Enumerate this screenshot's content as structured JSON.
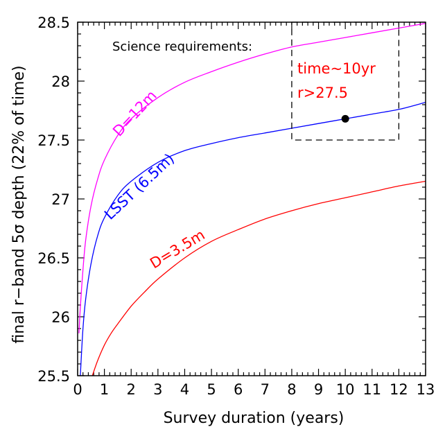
{
  "chart_data": {
    "type": "line",
    "title": "",
    "xlabel": "Survey duration (years)",
    "ylabel": "final r−band 5σ  depth  (22% of time)",
    "xlim": [
      0,
      13
    ],
    "ylim": [
      25.5,
      28.5
    ],
    "xticks": [
      "0",
      "1",
      "2",
      "3",
      "4",
      "5",
      "6",
      "7",
      "8",
      "9",
      "10",
      "11",
      "12",
      "13"
    ],
    "yticks": [
      "25.5",
      "26",
      "26.5",
      "27",
      "27.5",
      "28",
      "28.5"
    ],
    "grid": false,
    "series": [
      {
        "name": "D=12m",
        "color": "#ff00ff",
        "x": [
          0.05,
          0.1,
          0.2,
          0.3,
          0.5,
          0.75,
          1,
          1.5,
          2,
          3,
          4,
          5,
          6,
          7,
          8,
          9,
          10,
          11,
          12,
          13
        ],
        "y": [
          25.86,
          26.08,
          26.4,
          26.65,
          26.94,
          27.17,
          27.33,
          27.54,
          27.68,
          27.86,
          27.99,
          28.08,
          28.16,
          28.23,
          28.29,
          28.33,
          28.37,
          28.41,
          28.45,
          28.49
        ]
      },
      {
        "name": "LSST (6.5m)",
        "color": "#0000ff",
        "x": [
          0.1,
          0.2,
          0.3,
          0.5,
          0.75,
          1,
          1.5,
          2,
          3,
          4,
          5,
          6,
          7,
          8,
          9,
          10,
          11,
          12,
          13
        ],
        "y": [
          25.5,
          25.9,
          26.15,
          26.45,
          26.69,
          26.84,
          27.03,
          27.15,
          27.31,
          27.41,
          27.47,
          27.52,
          27.56,
          27.6,
          27.64,
          27.68,
          27.72,
          27.76,
          27.82
        ]
      },
      {
        "name": "D=3.5m",
        "color": "#ff0000",
        "x": [
          0.55,
          0.75,
          1,
          1.25,
          1.5,
          2,
          2.5,
          3,
          4,
          5,
          6,
          7,
          8,
          9,
          10,
          11,
          12,
          13
        ],
        "y": [
          25.5,
          25.63,
          25.76,
          25.86,
          25.94,
          26.09,
          26.21,
          26.32,
          26.5,
          26.64,
          26.74,
          26.83,
          26.9,
          26.96,
          27.01,
          27.06,
          27.11,
          27.15
        ]
      }
    ],
    "points": [
      {
        "x": 10,
        "y": 27.68,
        "color": "#000000"
      }
    ],
    "requirement_box": {
      "x": [
        8,
        12
      ],
      "y": [
        27.5,
        28.5
      ]
    },
    "annotations": {
      "science_requirements": "Science requirements:",
      "time_req": "time~10yr",
      "r_req": "r>27.5",
      "label_12m": "D=12m",
      "label_lsst": "LSST (6.5m)",
      "label_35m": "D=3.5m"
    }
  }
}
